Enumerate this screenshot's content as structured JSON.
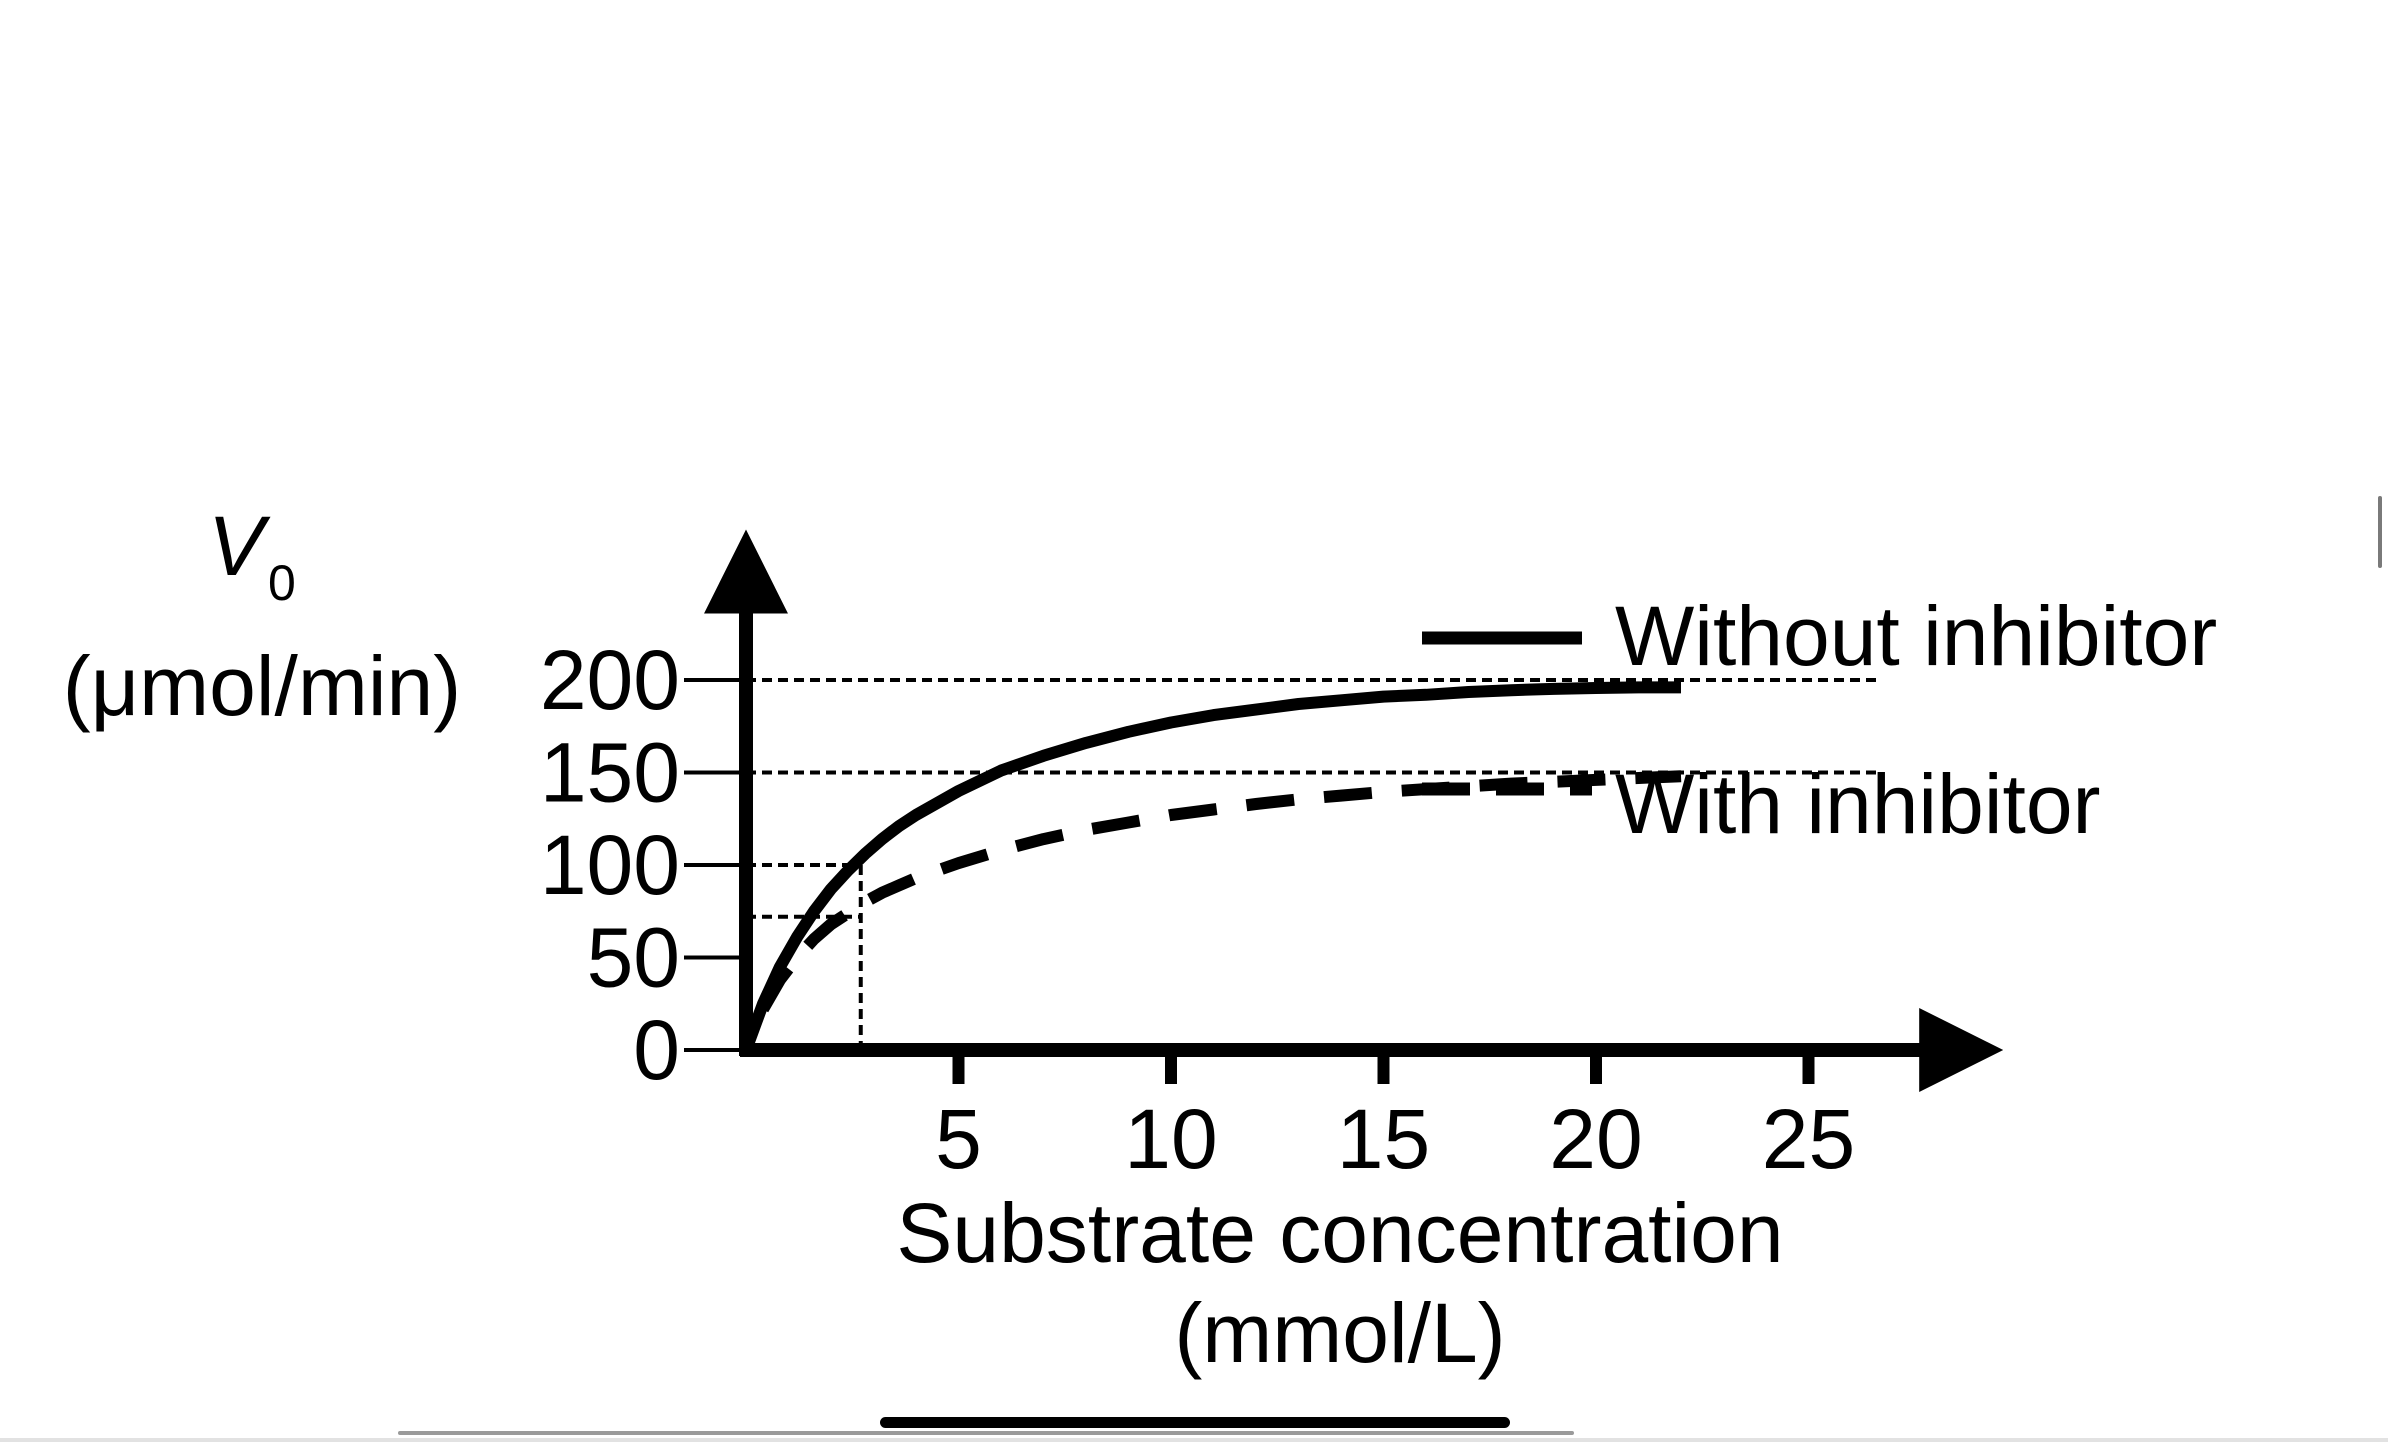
{
  "chart_data": {
    "type": "line",
    "title": "",
    "ylabel": "V",
    "ylabel_subscript": "0",
    "ylabel_unit": "(μmol/min)",
    "xlabel": "Substrate concentration",
    "xlabel_unit": "(mmol/L)",
    "xlim": [
      0,
      28
    ],
    "ylim": [
      0,
      245
    ],
    "x_ticks": [
      5,
      10,
      15,
      20,
      25
    ],
    "x_tick_labels": [
      "5",
      "10",
      "15",
      "20",
      "25"
    ],
    "y_ticks": [
      0,
      50,
      100,
      150,
      200
    ],
    "y_tick_labels": [
      "0",
      "50",
      "100",
      "150",
      "200"
    ],
    "grid": false,
    "legend_position": "right",
    "reference_lines": {
      "horizontal_full": [
        200,
        150
      ],
      "horizontal_partial": [
        {
          "y": 100,
          "x_end": 2.7
        },
        {
          "y": 72,
          "x_end": 2.7
        }
      ],
      "vertical_partial": [
        {
          "x": 2.7,
          "y_end": 100
        }
      ]
    },
    "series": [
      {
        "name": "Without inhibitor",
        "style": "solid",
        "x": [
          0,
          0.4,
          0.8,
          1.2,
          1.6,
          2.0,
          2.4,
          2.8,
          3.2,
          3.6,
          4.0,
          5.0,
          6.0,
          7.0,
          8.0,
          9.0,
          10.0,
          11.0,
          12.0,
          13.0,
          14.0,
          15.0,
          16.0,
          17.0,
          18.0,
          19.0,
          20.0,
          21.0,
          22.0
        ],
        "values": [
          0,
          25,
          45,
          61,
          75,
          87,
          97,
          106,
          114,
          121,
          127,
          140,
          151,
          159,
          166,
          172,
          177,
          181,
          184,
          187,
          189,
          191,
          192,
          193.5,
          194.5,
          195.2,
          195.7,
          196,
          196
        ]
      },
      {
        "name": "With inhibitor",
        "style": "dashed",
        "x": [
          0.4,
          0.8,
          1.2,
          1.6,
          2.0,
          2.4,
          2.8,
          3.2,
          3.6,
          4.0,
          5.0,
          6.0,
          7.0,
          8.0,
          9.0,
          10.0,
          11.0,
          12.0,
          13.0,
          14.0,
          15.0,
          16.0,
          17.0,
          18.0,
          19.0,
          20.0,
          21.0,
          22.0
        ],
        "values": [
          22,
          38,
          50,
          60,
          68,
          74,
          80,
          85,
          89,
          93,
          101,
          108,
          114,
          119,
          123,
          127,
          130,
          133,
          135.5,
          137.5,
          139.5,
          141,
          142.5,
          144,
          145,
          146,
          147,
          148
        ]
      }
    ]
  },
  "colors": {
    "ink": "#000000",
    "background": "#ffffff"
  }
}
